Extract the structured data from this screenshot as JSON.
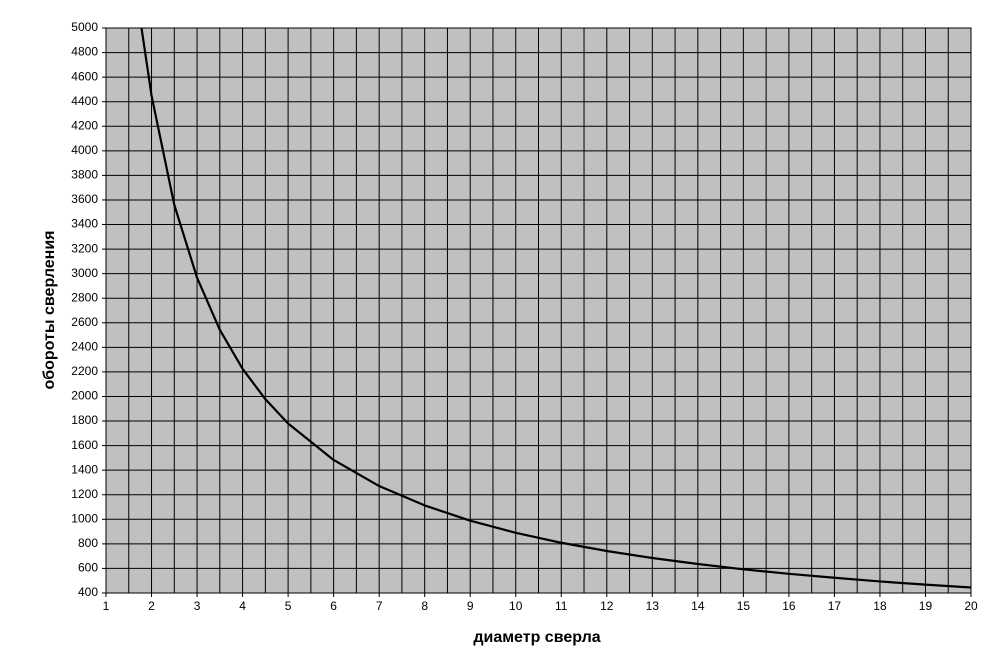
{
  "chart_data": {
    "type": "line",
    "x_label": "диаметр сверла",
    "y_label": "обороты сверления",
    "x": [
      1.78,
      2,
      2.5,
      3,
      3.5,
      4,
      4.5,
      5,
      6,
      7,
      8,
      9,
      10,
      11,
      12,
      13,
      14,
      15,
      16,
      17,
      18,
      19,
      20
    ],
    "series": [
      {
        "color": "#000000",
        "values": [
          5000,
          4450,
          3560,
          2967,
          2543,
          2225,
          1978,
          1780,
          1483,
          1271,
          1113,
          989,
          890,
          809,
          742,
          685,
          636,
          593,
          556,
          524,
          494,
          468,
          445
        ]
      }
    ],
    "xlim": [
      1,
      20
    ],
    "xticks": [
      1,
      2,
      3,
      4,
      5,
      6,
      7,
      8,
      9,
      10,
      11,
      12,
      13,
      14,
      15,
      16,
      17,
      18,
      19,
      20
    ],
    "x_minor_gridlines": [
      1.5,
      2.5,
      3.5,
      4.5,
      5.5,
      6.5,
      7.5,
      8.5,
      9.5,
      10.5,
      11.5,
      12.5,
      13.5,
      14.5,
      15.5,
      16.5,
      17.5,
      18.5,
      19.5
    ],
    "ylim": [
      400,
      5000
    ],
    "yticks": [
      400,
      600,
      800,
      1000,
      1200,
      1400,
      1600,
      1800,
      2000,
      2200,
      2400,
      2600,
      2800,
      3000,
      3200,
      3400,
      3600,
      3800,
      4000,
      4200,
      4400,
      4600,
      4800,
      5000
    ],
    "grid": true,
    "plot_background": "#c0c0c0"
  }
}
